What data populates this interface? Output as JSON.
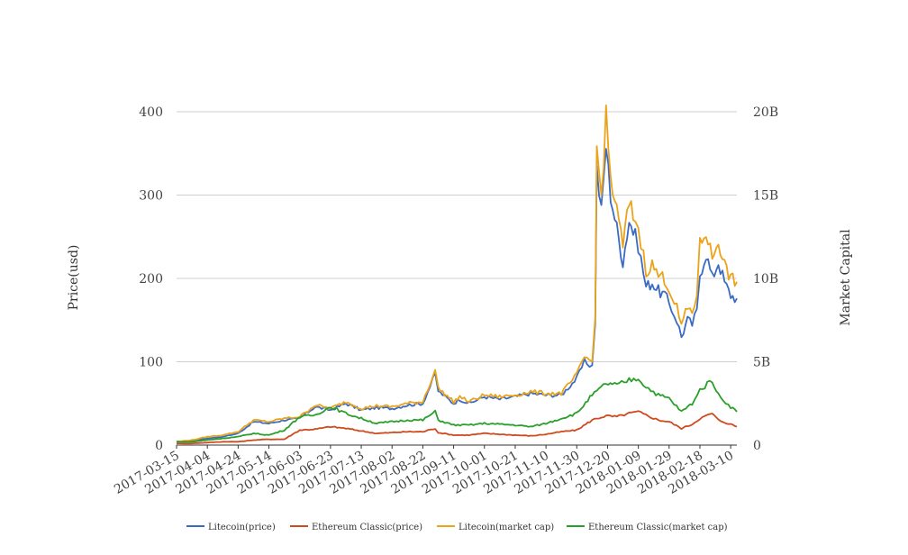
{
  "chart_data": {
    "type": "line",
    "title": "",
    "ylabel_left": "Price(usd)",
    "ylabel_right": "Market Capital",
    "ylim_left": [
      0,
      400
    ],
    "ylim_right": [
      0,
      20
    ],
    "yticks_left": [
      "0",
      "100",
      "200",
      "300",
      "400"
    ],
    "yticks_right": [
      "0",
      "5B",
      "10B",
      "15B",
      "20B"
    ],
    "xticks": [
      "2017-03-15",
      "2017-04-04",
      "2017-04-24",
      "2017-05-14",
      "2017-06-03",
      "2017-06-23",
      "2017-07-13",
      "2017-08-02",
      "2017-08-22",
      "2017-09-11",
      "2017-10-01",
      "2017-10-21",
      "2017-11-10",
      "2017-11-30",
      "2017-12-20",
      "2018-01-09",
      "2018-01-29",
      "2018-02-18",
      "2018-03-10"
    ],
    "x_range": [
      "2017-03-15",
      "2018-03-14"
    ],
    "grid": true,
    "legend_position": "bottom",
    "series": [
      {
        "name": "Litecoin(price)",
        "axis": "left",
        "color": "#3a6bc4",
        "x": [
          "2017-03-15",
          "2017-03-25",
          "2017-04-04",
          "2017-04-14",
          "2017-04-24",
          "2017-05-04",
          "2017-05-14",
          "2017-05-24",
          "2017-06-03",
          "2017-06-13",
          "2017-06-23",
          "2017-07-03",
          "2017-07-13",
          "2017-07-23",
          "2017-08-02",
          "2017-08-12",
          "2017-08-22",
          "2017-08-30",
          "2017-09-01",
          "2017-09-11",
          "2017-09-15",
          "2017-09-21",
          "2017-10-01",
          "2017-10-11",
          "2017-10-21",
          "2017-10-31",
          "2017-11-10",
          "2017-11-20",
          "2017-11-30",
          "2017-12-05",
          "2017-12-10",
          "2017-12-12",
          "2017-12-13",
          "2017-12-16",
          "2017-12-19",
          "2017-12-22",
          "2017-12-26",
          "2017-12-30",
          "2018-01-03",
          "2018-01-07",
          "2018-01-09",
          "2018-01-14",
          "2018-01-18",
          "2018-01-22",
          "2018-01-26",
          "2018-01-29",
          "2018-02-03",
          "2018-02-06",
          "2018-02-10",
          "2018-02-13",
          "2018-02-16",
          "2018-02-18",
          "2018-02-22",
          "2018-02-26",
          "2018-03-02",
          "2018-03-06",
          "2018-03-10",
          "2018-03-14"
        ],
        "y": [
          4,
          5,
          8,
          10,
          14,
          28,
          26,
          30,
          32,
          46,
          42,
          50,
          42,
          45,
          44,
          48,
          50,
          85,
          65,
          50,
          55,
          50,
          58,
          55,
          58,
          62,
          60,
          60,
          80,
          100,
          95,
          150,
          330,
          280,
          360,
          300,
          260,
          220,
          270,
          250,
          240,
          190,
          195,
          185,
          180,
          170,
          150,
          130,
          150,
          145,
          160,
          205,
          230,
          200,
          220,
          195,
          180,
          176
        ]
      },
      {
        "name": "Ethereum Classic(price)",
        "axis": "left",
        "color": "#cf4a1f",
        "x": [
          "2017-03-15",
          "2017-03-25",
          "2017-04-04",
          "2017-04-14",
          "2017-04-24",
          "2017-05-04",
          "2017-05-14",
          "2017-05-24",
          "2017-06-03",
          "2017-06-13",
          "2017-06-23",
          "2017-07-03",
          "2017-07-13",
          "2017-07-23",
          "2017-08-02",
          "2017-08-12",
          "2017-08-22",
          "2017-08-30",
          "2017-09-01",
          "2017-09-11",
          "2017-09-21",
          "2017-10-01",
          "2017-10-11",
          "2017-10-21",
          "2017-10-31",
          "2017-11-10",
          "2017-11-20",
          "2017-11-30",
          "2017-12-10",
          "2017-12-13",
          "2017-12-19",
          "2017-12-26",
          "2018-01-03",
          "2018-01-09",
          "2018-01-14",
          "2018-01-22",
          "2018-01-29",
          "2018-02-06",
          "2018-02-13",
          "2018-02-18",
          "2018-02-26",
          "2018-03-02",
          "2018-03-10",
          "2018-03-14"
        ],
        "y": [
          2,
          2,
          3,
          4,
          4,
          6,
          7,
          7,
          18,
          19,
          22,
          20,
          17,
          14,
          15,
          16,
          16,
          20,
          15,
          12,
          12,
          14,
          13,
          12,
          11,
          13,
          16,
          18,
          30,
          32,
          35,
          34,
          38,
          40,
          36,
          30,
          28,
          20,
          25,
          32,
          38,
          30,
          25,
          22
        ]
      },
      {
        "name": "Litecoin(market cap)",
        "axis": "right",
        "color": "#eba31a",
        "x": [
          "2017-03-15",
          "2017-03-25",
          "2017-04-04",
          "2017-04-14",
          "2017-04-24",
          "2017-05-04",
          "2017-05-14",
          "2017-05-24",
          "2017-06-03",
          "2017-06-13",
          "2017-06-23",
          "2017-07-03",
          "2017-07-13",
          "2017-07-23",
          "2017-08-02",
          "2017-08-12",
          "2017-08-22",
          "2017-08-30",
          "2017-09-01",
          "2017-09-11",
          "2017-09-15",
          "2017-09-21",
          "2017-10-01",
          "2017-10-11",
          "2017-10-21",
          "2017-10-31",
          "2017-11-10",
          "2017-11-20",
          "2017-11-30",
          "2017-12-05",
          "2017-12-10",
          "2017-12-12",
          "2017-12-13",
          "2017-12-16",
          "2017-12-19",
          "2017-12-22",
          "2017-12-26",
          "2017-12-30",
          "2018-01-03",
          "2018-01-07",
          "2018-01-09",
          "2018-01-14",
          "2018-01-18",
          "2018-01-22",
          "2018-01-26",
          "2018-01-29",
          "2018-02-03",
          "2018-02-06",
          "2018-02-10",
          "2018-02-13",
          "2018-02-16",
          "2018-02-18",
          "2018-02-22",
          "2018-02-26",
          "2018-03-02",
          "2018-03-06",
          "2018-03-10",
          "2018-03-14"
        ],
        "y": [
          0.2,
          0.3,
          0.5,
          0.6,
          0.8,
          1.5,
          1.4,
          1.6,
          1.7,
          2.4,
          2.2,
          2.6,
          2.2,
          2.35,
          2.3,
          2.5,
          2.6,
          4.5,
          3.4,
          2.6,
          2.9,
          2.6,
          3.0,
          2.9,
          3.0,
          3.2,
          3.1,
          3.1,
          4.2,
          5.3,
          5.0,
          8.0,
          17.5,
          15.0,
          19.6,
          16.0,
          14.0,
          12.0,
          14.5,
          13.5,
          13.0,
          10.5,
          10.8,
          10.2,
          10.0,
          9.4,
          8.2,
          7.2,
          8.2,
          8.0,
          9.0,
          12.0,
          12.8,
          11.2,
          12.3,
          10.8,
          10.0,
          9.8
        ]
      },
      {
        "name": "Ethereum Classic(market cap)",
        "axis": "right",
        "color": "#2aa02a",
        "x": [
          "2017-03-15",
          "2017-03-25",
          "2017-04-04",
          "2017-04-14",
          "2017-04-24",
          "2017-05-04",
          "2017-05-14",
          "2017-05-24",
          "2017-06-03",
          "2017-06-13",
          "2017-06-23",
          "2017-07-03",
          "2017-07-13",
          "2017-07-23",
          "2017-08-02",
          "2017-08-12",
          "2017-08-22",
          "2017-08-30",
          "2017-09-01",
          "2017-09-11",
          "2017-09-21",
          "2017-10-01",
          "2017-10-11",
          "2017-10-21",
          "2017-10-31",
          "2017-11-10",
          "2017-11-20",
          "2017-11-30",
          "2017-12-10",
          "2017-12-13",
          "2017-12-19",
          "2017-12-26",
          "2018-01-03",
          "2018-01-09",
          "2018-01-14",
          "2018-01-22",
          "2018-01-29",
          "2018-02-06",
          "2018-02-13",
          "2018-02-18",
          "2018-02-26",
          "2018-03-02",
          "2018-03-10",
          "2018-03-14"
        ],
        "y": [
          0.2,
          0.2,
          0.3,
          0.4,
          0.5,
          0.7,
          0.6,
          0.9,
          1.7,
          1.8,
          2.3,
          1.9,
          1.6,
          1.3,
          1.4,
          1.5,
          1.5,
          2.0,
          1.5,
          1.2,
          1.2,
          1.3,
          1.25,
          1.2,
          1.1,
          1.3,
          1.6,
          1.9,
          3.0,
          3.2,
          3.7,
          3.6,
          3.9,
          4.0,
          3.5,
          3.0,
          2.8,
          2.0,
          2.5,
          3.3,
          3.9,
          3.0,
          2.3,
          2.0
        ]
      }
    ]
  }
}
